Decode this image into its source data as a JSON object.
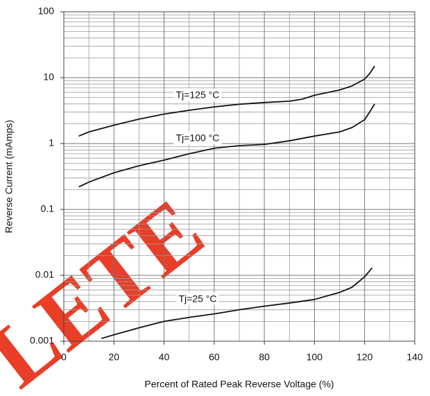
{
  "chart_data": {
    "type": "line",
    "x_label": "Percent of Rated Peak Reverse Voltage (%)",
    "y_label": "Reverse Current (mAmps)",
    "watermark": "LETE",
    "xlim": [
      0,
      140
    ],
    "xticks": [
      0,
      20,
      40,
      60,
      80,
      100,
      120,
      140
    ],
    "ylim": [
      0.001,
      100
    ],
    "yticks": [
      0.001,
      0.01,
      0.1,
      1,
      10,
      100
    ],
    "log_y": true,
    "grid": true,
    "series": [
      {
        "name": "Tj=125 °C",
        "color": "#111111",
        "x": [
          6,
          10,
          20,
          30,
          40,
          50,
          60,
          70,
          80,
          90,
          95,
          100,
          110,
          115,
          120,
          122,
          124
        ],
        "values": [
          1.3,
          1.5,
          1.9,
          2.35,
          2.8,
          3.2,
          3.6,
          3.95,
          4.2,
          4.4,
          4.7,
          5.4,
          6.5,
          7.5,
          9.5,
          11.5,
          15
        ]
      },
      {
        "name": "Tj=100 °C",
        "color": "#111111",
        "x": [
          6,
          10,
          20,
          30,
          40,
          50,
          60,
          70,
          80,
          90,
          100,
          110,
          115,
          120,
          122,
          124
        ],
        "values": [
          0.22,
          0.26,
          0.36,
          0.46,
          0.56,
          0.7,
          0.85,
          0.93,
          0.97,
          1.1,
          1.3,
          1.5,
          1.75,
          2.3,
          3,
          4
        ]
      },
      {
        "name": "Tj=25 °C",
        "color": "#111111",
        "x": [
          15,
          20,
          30,
          40,
          50,
          60,
          70,
          80,
          90,
          100,
          110,
          115,
          120,
          123
        ],
        "values": [
          0.0011,
          0.00125,
          0.0016,
          0.002,
          0.0023,
          0.0026,
          0.003,
          0.0034,
          0.0038,
          0.0043,
          0.0055,
          0.0066,
          0.0095,
          0.013
        ]
      }
    ]
  }
}
